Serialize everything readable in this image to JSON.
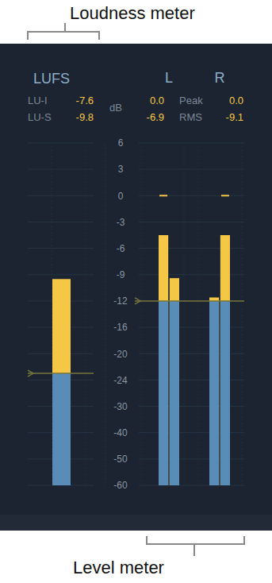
{
  "callouts": [
    {
      "text": "Loudness meter"
    },
    {
      "text": "Level meter"
    }
  ],
  "chart_data": [
    {
      "type": "bar",
      "title": "LUFS",
      "categories": [
        null
      ],
      "series": [
        {
          "color": "#f5c747",
          "values": [
            -9.5
          ]
        }
      ],
      "target": -23,
      "readouts": [
        {
          "label": "LU-I",
          "value": -7.6
        },
        {
          "label": "LU-S",
          "value": -9.8
        }
      ],
      "ylim": [
        -60,
        6
      ],
      "yticks": [
        -60,
        -50,
        -40,
        -30,
        -24,
        -20,
        -16,
        -12,
        -9,
        -6,
        -3,
        0,
        3,
        6
      ],
      "grid": true,
      "tick_labels": false
    },
    {
      "type": "bar",
      "categories": [
        "L",
        "R"
      ],
      "series": [
        {
          "color": "#f5c747",
          "values": [
            -4.5,
            -11.6
          ],
          "hold": [
            0,
            null
          ]
        },
        {
          "color": "#f5c747",
          "values": [
            -9.4,
            -4.5
          ],
          "hold": [
            null,
            0
          ]
        }
      ],
      "target": -12,
      "readouts": [
        {
          "label": "Peak",
          "values": [
            {
              "value": 0,
              "label": "0.0"
            },
            {
              "value": 0,
              "label": "0.0"
            }
          ]
        },
        {
          "label": "RMS",
          "values": [
            -6.9,
            -9.1
          ]
        }
      ],
      "ylabel": "dB",
      "ylim": [
        -60,
        6
      ],
      "yticks": [
        -60,
        -50,
        -40,
        -30,
        -24,
        -20,
        -16,
        -12,
        -9,
        -6,
        -3,
        0,
        3,
        6
      ],
      "grid": true
    }
  ]
}
